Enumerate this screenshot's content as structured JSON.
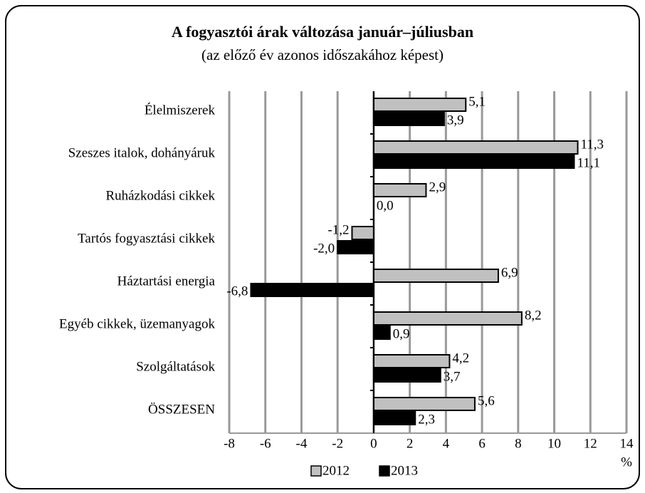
{
  "chart_data": {
    "type": "hbar",
    "title": "A fogyasztói árak változása január–júliusban",
    "subtitle": "(az előző év azonos időszakához képest)",
    "categories": [
      "Élelmiszerek",
      "Szeszes italok, dohányáruk",
      "Ruházkodási cikkek",
      "Tartós fogyasztási cikkek",
      "Háztartási energia",
      "Egyéb cikkek, üzemanyagok",
      "Szolgáltatások",
      "ÖSSZESEN"
    ],
    "series": [
      {
        "name": "2012",
        "color": "#c0c0c0",
        "values": [
          5.1,
          11.3,
          2.9,
          -1.2,
          6.9,
          8.2,
          4.2,
          5.6
        ],
        "value_labels": [
          "5,1",
          "11,3",
          "2,9",
          "-1,2",
          "6,9",
          "8,2",
          "4,2",
          "5,6"
        ]
      },
      {
        "name": "2013",
        "color": "#000000",
        "values": [
          3.9,
          11.1,
          0.0,
          -2.0,
          -6.8,
          0.9,
          3.7,
          2.3
        ],
        "value_labels": [
          "3,9",
          "11,1",
          "0,0",
          "-2,0",
          "-6,8",
          "0,9",
          "3,7",
          "2,3"
        ]
      }
    ],
    "xlim": [
      -8,
      14
    ],
    "xticks": [
      -8,
      -6,
      -4,
      -2,
      0,
      2,
      4,
      6,
      8,
      10,
      12,
      14
    ],
    "x_label": "%",
    "grid": true,
    "legend": "bottom"
  }
}
